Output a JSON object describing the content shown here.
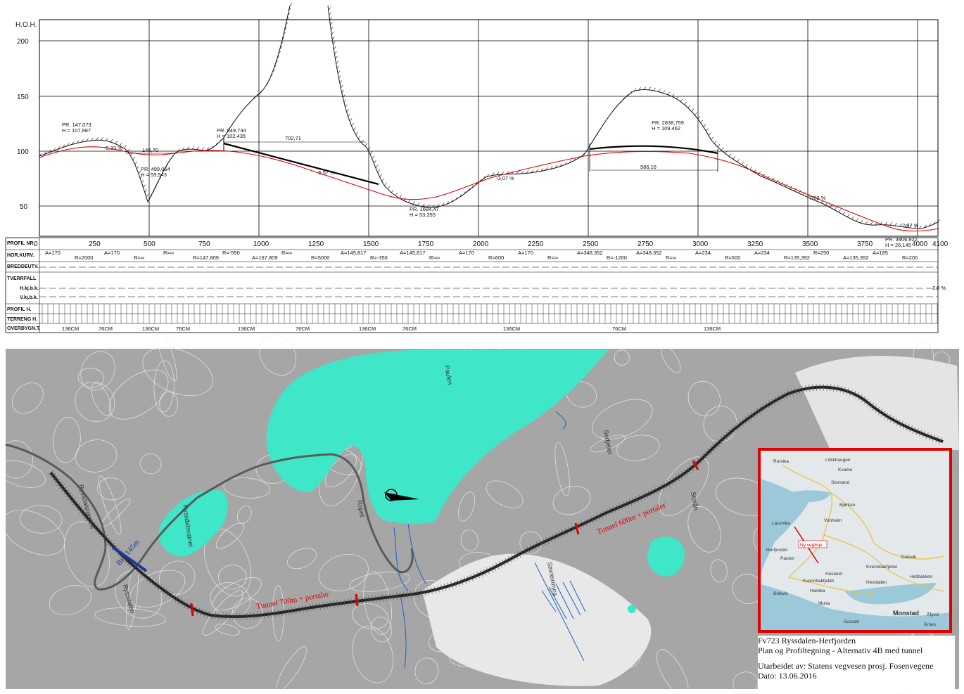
{
  "profile": {
    "axis_title": "H.O.H.",
    "y_ticks": [
      "200",
      "150",
      "100",
      "50"
    ],
    "x_ticks": [
      "0",
      "250",
      "500",
      "750",
      "1000",
      "1250",
      "1500",
      "1750",
      "2000",
      "2250",
      "2500",
      "2750",
      "3000",
      "3250",
      "3500",
      "3750",
      "4000",
      "4100"
    ],
    "row_labels": [
      "PROFIL NR.",
      "HOR.KURV.",
      "BREDDEUTV.",
      "TVERRFALL",
      "H.kj.b.k.",
      "V.kj.b.k.",
      "PROFIL H.",
      "TERRENG H.",
      "OVERBYGN.T."
    ],
    "annotations": [
      {
        "id": "pr1",
        "line1": "PR. 147,073",
        "line2": "H = 107,987"
      },
      {
        "id": "pr2",
        "line1": "PR. 499,054",
        "line2": "H = 59,543"
      },
      {
        "id": "pr3",
        "line1": "PR. 849,744",
        "line2": "H = 102,435"
      },
      {
        "id": "pr4",
        "line1": "PR. 1684,47",
        "line2": "H = 53,355"
      },
      {
        "id": "pr5",
        "line1": "PR. 2838,759",
        "line2": "H = 109,462"
      },
      {
        "id": "pr6",
        "line1": "PR. 3906,922",
        "line2": "H = 26,145"
      }
    ],
    "dims": [
      "145,70",
      "702,71",
      "586,16"
    ],
    "grades": [
      "-5,33 %",
      "-5,57 %",
      "-3,07 %",
      "7,60 %",
      "2,87 %",
      "3,0 %"
    ],
    "curve_labels": [
      "A=170",
      "R=2000",
      "A=170",
      "R=∞",
      "R=∞",
      "R=147,809",
      "R=-550",
      "A=167,809",
      "R=∞",
      "R=5000",
      "A=145,817",
      "R=-350",
      "A=145,817",
      "R=∞",
      "A=170",
      "R=600",
      "A=170",
      "R=∞",
      "A=348,352",
      "R=-1200",
      "A=348,352",
      "R=∞",
      "A=234",
      "R=600",
      "A=234",
      "R=135,392",
      "R=250",
      "A=135,392",
      "A=185",
      "R=200"
    ],
    "overbygn": [
      "136CM",
      "76CM",
      "136CM",
      "76CM",
      "136CM",
      "76CM",
      "136CM",
      "76CM",
      "136CM",
      "76CM",
      "136CM"
    ]
  },
  "map": {
    "labels": {
      "lake_big": "Paulen",
      "lake_small": "Ryssdalsvatnet",
      "ryssdalen": "Ryssdalen",
      "ryssdalsroppen": "Ryssdalsroppen",
      "ropet": "Ropet",
      "stormyra": "Storleirmyra",
      "serfjellet": "Serfjellet",
      "tunnel1": "Tunnel 700m + portaler",
      "tunnel2": "Tunnel 600m + portaler",
      "bru": "Bru 145m",
      "storan": "Storån"
    }
  },
  "inset": {
    "route_label": "Ny veglinje",
    "places": [
      "Rorvika",
      "Lökkhaugen",
      "Kvame",
      "Storsand",
      "Bjørkan",
      "Lauvvika",
      "Vonheim",
      "Herfjorden",
      "Paulen",
      "Kvennbakfjellet",
      "Dalevik",
      "Hesland",
      "Kvennbakfjellet",
      "Bolsvik",
      "Halvika",
      "Muna",
      "Hestdalen",
      "Hellbakken",
      "Sussæt",
      "Monstad",
      "Åfjord",
      "Årnes"
    ]
  },
  "title": {
    "line1": "Fv723 Ryssdalen-Herfjorden",
    "line2": "Plan og Profiltegning  - Alternativ 4B med tunnel",
    "line3": "Utarbeidet av: Statens vegvesen prosj. Fosenvegene",
    "line4": "Dato: 13.06.2016"
  },
  "colors": {
    "water": "#3fe6c8",
    "land": "#a6a6a6",
    "contour": "#ffffff",
    "road": "#222222",
    "design_line": "#e00000",
    "inset_border": "#e00000",
    "stream": "#1e5fc8"
  }
}
